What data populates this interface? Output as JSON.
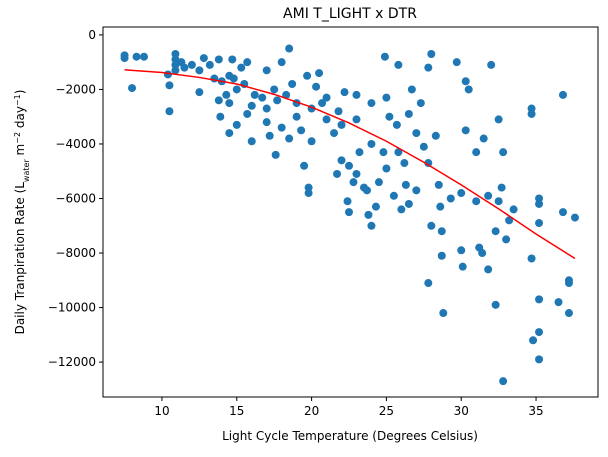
{
  "chart_data": {
    "type": "scatter",
    "title": "AMI T_LIGHT x DTR",
    "xlabel": "Light Cycle Temperature (Degrees Celsius)",
    "ylabel": [
      "Daily Tranpiration Rate (L",
      "water",
      " m",
      "−2",
      " day",
      "−1",
      ")"
    ],
    "xlim": [
      6.06,
      39.14
    ],
    "xticks": [
      10,
      15,
      20,
      25,
      30,
      35
    ],
    "ylim": [
      -13280,
      290
    ],
    "yticks": [
      {
        "value": -12000,
        "label": "−12000"
      },
      {
        "value": -10000,
        "label": "−10000"
      },
      {
        "value": -8000,
        "label": "−8000"
      },
      {
        "value": -6000,
        "label": "−6000"
      },
      {
        "value": -4000,
        "label": "−4000"
      },
      {
        "value": -2000,
        "label": "−2000"
      },
      0
    ],
    "series": [
      {
        "type": "scatter",
        "color": "#1f77b4",
        "x": [
          7.5,
          7.5,
          8,
          8.3,
          8.8,
          10.4,
          10.5,
          10.5,
          10.9,
          10.9,
          10.9,
          10.9,
          11.3,
          11.5,
          12,
          12.5,
          12.5,
          12.8,
          13.2,
          13.5,
          13.8,
          13.8,
          13.9,
          14,
          14.3,
          14.5,
          14.5,
          14.5,
          14.7,
          14.8,
          15,
          15,
          15.3,
          15.5,
          15.7,
          15.7,
          16,
          16,
          16.2,
          16.7,
          17,
          17,
          17,
          17.2,
          17.5,
          17.6,
          17.7,
          18,
          18,
          18.3,
          18.5,
          18.5,
          18.7,
          19,
          19,
          19.3,
          19.5,
          19.7,
          19.8,
          19.8,
          20,
          20,
          20.3,
          20.5,
          20.7,
          21,
          21,
          21.5,
          21.7,
          21.8,
          22,
          22,
          22.2,
          22.4,
          22.5,
          22.5,
          22.8,
          23,
          23,
          23,
          23.2,
          23.5,
          23.7,
          23.8,
          24,
          24,
          24,
          24.3,
          24.5,
          24.8,
          24.9,
          25,
          25,
          25.2,
          25.5,
          25.7,
          25.8,
          25.8,
          26,
          26.2,
          26.3,
          26.5,
          26.5,
          26.7,
          27,
          27,
          27.3,
          27.5,
          27.8,
          27.8,
          27.8,
          28,
          28,
          28.3,
          28.5,
          28.6,
          28.7,
          28.7,
          28.8,
          29.3,
          29.7,
          30,
          30,
          30.1,
          30.3,
          30.3,
          30.5,
          31,
          31,
          31.2,
          31.4,
          31.5,
          31.8,
          31.8,
          32,
          32.3,
          32.3,
          32.5,
          32.5,
          32.7,
          32.8,
          32.8,
          33,
          33.2,
          33.5,
          34.7,
          34.7,
          34.7,
          34.8,
          35.2,
          35.2,
          35.2,
          35.2,
          35.2,
          35.2,
          36.5,
          36.8,
          36.8,
          37.2,
          37.2,
          37.2,
          37.6
        ],
        "values": [
          -750,
          -850,
          -1950,
          -800,
          -800,
          -1450,
          -1850,
          -2800,
          -700,
          -900,
          -1100,
          -1300,
          -1000,
          -1200,
          -1100,
          -2100,
          -1300,
          -850,
          -1100,
          -1600,
          -900,
          -2400,
          -3000,
          -1700,
          -2200,
          -1500,
          -2500,
          -3600,
          -900,
          -1600,
          -3300,
          -2000,
          -1200,
          -1800,
          -2900,
          -1000,
          -2600,
          -3900,
          -2200,
          -2300,
          -1300,
          -2700,
          -3200,
          -3700,
          -2000,
          -4400,
          -2400,
          -3400,
          -1000,
          -2200,
          -500,
          -3800,
          -1800,
          -2500,
          -3000,
          -3500,
          -4800,
          -1500,
          -5600,
          -5800,
          -2700,
          -3900,
          -1900,
          -1400,
          -2500,
          -3100,
          -2300,
          -3600,
          -5100,
          -2800,
          -4600,
          -3300,
          -2100,
          -6100,
          -6500,
          -4800,
          -5400,
          -2200,
          -3100,
          -5100,
          -4300,
          -5600,
          -5700,
          -6600,
          -7000,
          -2500,
          -4000,
          -6300,
          -5400,
          -4300,
          -800,
          -2300,
          -4900,
          -3000,
          -5900,
          -3300,
          -4300,
          -1100,
          -6400,
          -4700,
          -5500,
          -2900,
          -6200,
          -2000,
          -3600,
          -5700,
          -2500,
          -4100,
          -1200,
          -4700,
          -9100,
          -700,
          -7000,
          -3700,
          -5500,
          -6300,
          -8100,
          -7200,
          -10200,
          -6000,
          -1000,
          -5800,
          -7900,
          -8500,
          -1700,
          -3500,
          -2000,
          -4300,
          -6100,
          -7800,
          -8000,
          -3800,
          -5900,
          -8600,
          -1100,
          -7200,
          -9900,
          -3100,
          -6100,
          -5600,
          -4300,
          -12700,
          -7500,
          -6800,
          -6400,
          -2700,
          -2900,
          -8200,
          -11200,
          -6000,
          -6200,
          -6900,
          -9700,
          -10900,
          -11900,
          -9800,
          -2200,
          -6500,
          -9100,
          -9000,
          -10200,
          -6700
        ]
      },
      {
        "type": "line",
        "color": "#ff0000",
        "x": [
          7.5,
          10,
          12.5,
          15,
          17.5,
          20,
          22.5,
          25,
          27.5,
          30,
          32.5,
          35,
          37.6
        ],
        "values": [
          -1280,
          -1380,
          -1560,
          -1800,
          -2180,
          -2650,
          -3230,
          -3900,
          -4670,
          -5500,
          -6380,
          -7300,
          -8200
        ]
      }
    ]
  }
}
